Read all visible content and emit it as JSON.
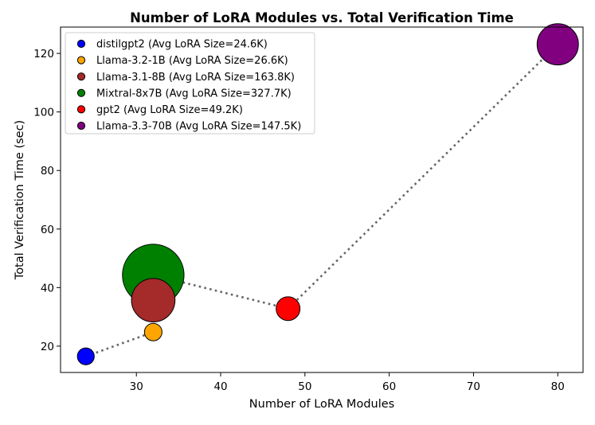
{
  "chart_data": {
    "type": "scatter",
    "title": "Number of LoRA Modules vs. Total Verification Time",
    "xlabel": "Number of LoRA Modules",
    "ylabel": "Total Verification Time (sec)",
    "xlim": [
      21,
      83
    ],
    "ylim": [
      11,
      129
    ],
    "xticks": [
      30,
      40,
      50,
      60,
      70,
      80
    ],
    "yticks": [
      20,
      40,
      60,
      80,
      100,
      120
    ],
    "legend_position": "top-left",
    "connector": {
      "style": "dotted",
      "color": "#666666"
    },
    "series": [
      {
        "name": "distilgpt2 (Avg LoRA Size=24.6K)",
        "x": 24,
        "y": 16.5,
        "avg_lora_size_k": 24.6,
        "color": "#0000ff"
      },
      {
        "name": "Llama-3.2-1B (Avg LoRA Size=26.6K)",
        "x": 32,
        "y": 24.8,
        "avg_lora_size_k": 26.6,
        "color": "#ffa500"
      },
      {
        "name": "Llama-3.1-8B (Avg LoRA Size=163.8K)",
        "x": 32,
        "y": 35.7,
        "avg_lora_size_k": 163.8,
        "color": "#a52a2a"
      },
      {
        "name": "Mixtral-8x7B (Avg LoRA Size=327.7K)",
        "x": 32,
        "y": 44.3,
        "avg_lora_size_k": 327.7,
        "color": "#008000"
      },
      {
        "name": "gpt2 (Avg LoRA Size=49.2K)",
        "x": 48,
        "y": 32.8,
        "avg_lora_size_k": 49.2,
        "color": "#ff0000"
      },
      {
        "name": "Llama-3.3-70B (Avg LoRA Size=147.5K)",
        "x": 80,
        "y": 123.1,
        "avg_lora_size_k": 147.5,
        "color": "#800080"
      }
    ]
  }
}
